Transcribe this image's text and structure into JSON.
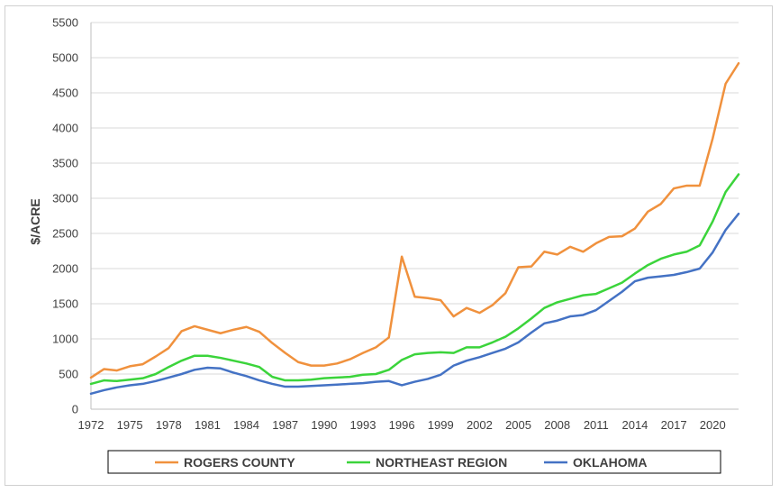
{
  "chart_data": {
    "type": "line",
    "title": "",
    "xlabel": "",
    "ylabel": "$/ACRE",
    "ylim": [
      0,
      5500
    ],
    "xlim": [
      1972,
      2022
    ],
    "yticks": [
      0,
      500,
      1000,
      1500,
      2000,
      2500,
      3000,
      3500,
      4000,
      4500,
      5000,
      5500
    ],
    "xticks": [
      1972,
      1975,
      1978,
      1981,
      1984,
      1987,
      1990,
      1993,
      1996,
      1999,
      2002,
      2005,
      2008,
      2011,
      2014,
      2017,
      2020
    ],
    "grid": "horizontal",
    "legend_position": "bottom",
    "x": [
      1972,
      1973,
      1974,
      1975,
      1976,
      1977,
      1978,
      1979,
      1980,
      1981,
      1982,
      1983,
      1984,
      1985,
      1986,
      1987,
      1988,
      1989,
      1990,
      1991,
      1992,
      1993,
      1994,
      1995,
      1996,
      1997,
      1998,
      1999,
      2000,
      2001,
      2002,
      2003,
      2004,
      2005,
      2006,
      2007,
      2008,
      2009,
      2010,
      2011,
      2012,
      2013,
      2014,
      2015,
      2016,
      2017,
      2018,
      2019,
      2020,
      2021,
      2022
    ],
    "series": [
      {
        "name": "ROGERS COUNTY",
        "color": "#f0913d",
        "values": [
          450,
          570,
          550,
          610,
          640,
          750,
          870,
          1110,
          1180,
          1130,
          1080,
          1130,
          1170,
          1100,
          940,
          800,
          670,
          620,
          620,
          650,
          710,
          800,
          880,
          1020,
          2170,
          1600,
          1580,
          1550,
          1320,
          1440,
          1370,
          1480,
          1650,
          2020,
          2030,
          2240,
          2200,
          2310,
          2240,
          2360,
          2450,
          2460,
          2570,
          2810,
          2920,
          3140,
          3180,
          3180,
          3850,
          4630,
          4920
        ]
      },
      {
        "name": "NORTHEAST REGION",
        "color": "#3bd43b",
        "values": [
          360,
          410,
          400,
          420,
          440,
          500,
          600,
          690,
          760,
          760,
          730,
          690,
          650,
          600,
          460,
          410,
          410,
          420,
          440,
          450,
          460,
          490,
          500,
          560,
          700,
          780,
          800,
          810,
          800,
          880,
          880,
          950,
          1030,
          1150,
          1290,
          1440,
          1520,
          1570,
          1620,
          1640,
          1720,
          1800,
          1930,
          2050,
          2140,
          2200,
          2240,
          2330,
          2670,
          3090,
          3340
        ]
      },
      {
        "name": "OKLAHOMA",
        "color": "#4472c4",
        "values": [
          220,
          270,
          310,
          340,
          360,
          400,
          450,
          500,
          560,
          590,
          580,
          520,
          470,
          410,
          360,
          320,
          320,
          330,
          340,
          350,
          360,
          370,
          390,
          400,
          340,
          390,
          430,
          490,
          620,
          690,
          740,
          800,
          860,
          950,
          1090,
          1220,
          1260,
          1320,
          1340,
          1410,
          1540,
          1670,
          1820,
          1870,
          1890,
          1910,
          1950,
          2000,
          2230,
          2550,
          2780
        ]
      }
    ]
  }
}
